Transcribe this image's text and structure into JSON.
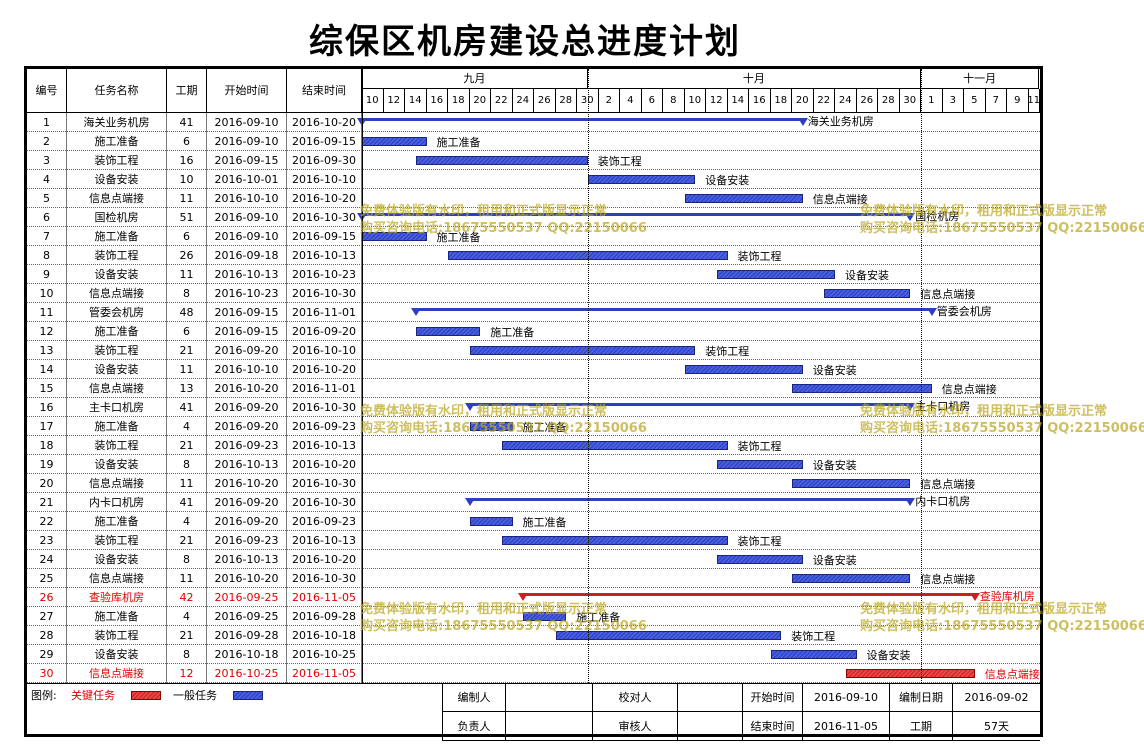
{
  "title": "综保区机房建设总进度计划",
  "headers": {
    "id": "编号",
    "name": "任务名称",
    "dur": "工期",
    "start": "开始时间",
    "end": "结束时间"
  },
  "months": [
    "九月",
    "十月",
    "十一月"
  ],
  "days": [
    "10",
    "12",
    "14",
    "16",
    "18",
    "20",
    "22",
    "24",
    "26",
    "28",
    "30",
    "2",
    "4",
    "6",
    "8",
    "10",
    "12",
    "14",
    "16",
    "18",
    "20",
    "22",
    "24",
    "26",
    "28",
    "30",
    "1",
    "3",
    "5",
    "7",
    "9",
    "11"
  ],
  "tasks": [
    {
      "id": "1",
      "name": "海关业务机房",
      "dur": "41",
      "start": "2016-09-10",
      "end": "2016-10-20",
      "summary": true,
      "crit": false
    },
    {
      "id": "2",
      "name": "施工准备",
      "dur": "6",
      "start": "2016-09-10",
      "end": "2016-09-15",
      "summary": false,
      "crit": false
    },
    {
      "id": "3",
      "name": "装饰工程",
      "dur": "16",
      "start": "2016-09-15",
      "end": "2016-09-30",
      "summary": false,
      "crit": false
    },
    {
      "id": "4",
      "name": "设备安装",
      "dur": "10",
      "start": "2016-10-01",
      "end": "2016-10-10",
      "summary": false,
      "crit": false
    },
    {
      "id": "5",
      "name": "信息点端接",
      "dur": "11",
      "start": "2016-10-10",
      "end": "2016-10-20",
      "summary": false,
      "crit": false
    },
    {
      "id": "6",
      "name": "国检机房",
      "dur": "51",
      "start": "2016-09-10",
      "end": "2016-10-30",
      "summary": true,
      "crit": false
    },
    {
      "id": "7",
      "name": "施工准备",
      "dur": "6",
      "start": "2016-09-10",
      "end": "2016-09-15",
      "summary": false,
      "crit": false
    },
    {
      "id": "8",
      "name": "装饰工程",
      "dur": "26",
      "start": "2016-09-18",
      "end": "2016-10-13",
      "summary": false,
      "crit": false
    },
    {
      "id": "9",
      "name": "设备安装",
      "dur": "11",
      "start": "2016-10-13",
      "end": "2016-10-23",
      "summary": false,
      "crit": false
    },
    {
      "id": "10",
      "name": "信息点端接",
      "dur": "8",
      "start": "2016-10-23",
      "end": "2016-10-30",
      "summary": false,
      "crit": false
    },
    {
      "id": "11",
      "name": "管委会机房",
      "dur": "48",
      "start": "2016-09-15",
      "end": "2016-11-01",
      "summary": true,
      "crit": false
    },
    {
      "id": "12",
      "name": "施工准备",
      "dur": "6",
      "start": "2016-09-15",
      "end": "2016-09-20",
      "summary": false,
      "crit": false
    },
    {
      "id": "13",
      "name": "装饰工程",
      "dur": "21",
      "start": "2016-09-20",
      "end": "2016-10-10",
      "summary": false,
      "crit": false
    },
    {
      "id": "14",
      "name": "设备安装",
      "dur": "11",
      "start": "2016-10-10",
      "end": "2016-10-20",
      "summary": false,
      "crit": false
    },
    {
      "id": "15",
      "name": "信息点端接",
      "dur": "13",
      "start": "2016-10-20",
      "end": "2016-11-01",
      "summary": false,
      "crit": false
    },
    {
      "id": "16",
      "name": "主卡口机房",
      "dur": "41",
      "start": "2016-09-20",
      "end": "2016-10-30",
      "summary": true,
      "crit": false
    },
    {
      "id": "17",
      "name": "施工准备",
      "dur": "4",
      "start": "2016-09-20",
      "end": "2016-09-23",
      "summary": false,
      "crit": false
    },
    {
      "id": "18",
      "name": "装饰工程",
      "dur": "21",
      "start": "2016-09-23",
      "end": "2016-10-13",
      "summary": false,
      "crit": false
    },
    {
      "id": "19",
      "name": "设备安装",
      "dur": "8",
      "start": "2016-10-13",
      "end": "2016-10-20",
      "summary": false,
      "crit": false
    },
    {
      "id": "20",
      "name": "信息点端接",
      "dur": "11",
      "start": "2016-10-20",
      "end": "2016-10-30",
      "summary": false,
      "crit": false
    },
    {
      "id": "21",
      "name": "内卡口机房",
      "dur": "41",
      "start": "2016-09-20",
      "end": "2016-10-30",
      "summary": true,
      "crit": false
    },
    {
      "id": "22",
      "name": "施工准备",
      "dur": "4",
      "start": "2016-09-20",
      "end": "2016-09-23",
      "summary": false,
      "crit": false
    },
    {
      "id": "23",
      "name": "装饰工程",
      "dur": "21",
      "start": "2016-09-23",
      "end": "2016-10-13",
      "summary": false,
      "crit": false
    },
    {
      "id": "24",
      "name": "设备安装",
      "dur": "8",
      "start": "2016-10-13",
      "end": "2016-10-20",
      "summary": false,
      "crit": false
    },
    {
      "id": "25",
      "name": "信息点端接",
      "dur": "11",
      "start": "2016-10-20",
      "end": "2016-10-30",
      "summary": false,
      "crit": false
    },
    {
      "id": "26",
      "name": "查验库机房",
      "dur": "42",
      "start": "2016-09-25",
      "end": "2016-11-05",
      "summary": true,
      "crit": true
    },
    {
      "id": "27",
      "name": "施工准备",
      "dur": "4",
      "start": "2016-09-25",
      "end": "2016-09-28",
      "summary": false,
      "crit": false
    },
    {
      "id": "28",
      "name": "装饰工程",
      "dur": "21",
      "start": "2016-09-28",
      "end": "2016-10-18",
      "summary": false,
      "crit": false
    },
    {
      "id": "29",
      "name": "设备安装",
      "dur": "8",
      "start": "2016-10-18",
      "end": "2016-10-25",
      "summary": false,
      "crit": false
    },
    {
      "id": "30",
      "name": "信息点端接",
      "dur": "12",
      "start": "2016-10-25",
      "end": "2016-11-05",
      "summary": false,
      "crit": true
    }
  ],
  "legend": {
    "prefix": "图例:",
    "critical": "关键任务",
    "normal": "一般任务"
  },
  "footer": {
    "editor_label": "编制人",
    "checker_label": "校对人",
    "start_label": "开始时间",
    "start_value": "2016-09-10",
    "date_label": "编制日期",
    "date_value": "2016-09-02",
    "owner_label": "负责人",
    "reviewer_label": "审核人",
    "end_label": "结束时间",
    "end_value": "2016-11-05",
    "dur_label": "工期",
    "dur_value": "57天"
  },
  "watermark": {
    "line1": "免费体验版有水印，租用和正式版显示正常",
    "line2": "购买咨询电话:18675550537 QQ:22150066"
  },
  "colors": {
    "normal": "#2b3fbf",
    "critical": "#cc2020",
    "critical_text": "#e00000",
    "watermark": "#bea828"
  }
}
